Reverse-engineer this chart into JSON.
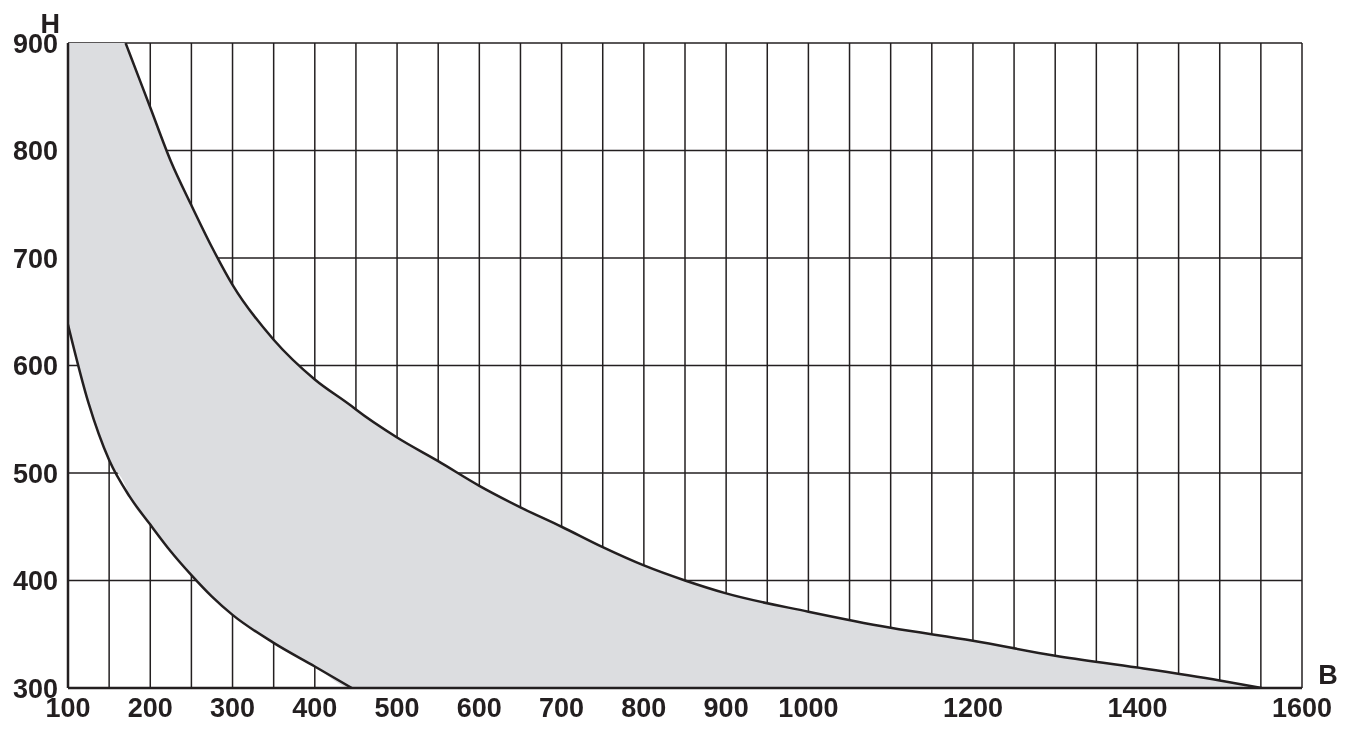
{
  "chart_data": {
    "type": "line",
    "xlabel": "B",
    "ylabel": "H",
    "xlim": [
      100,
      1600
    ],
    "ylim": [
      300,
      900
    ],
    "xticks": [
      100,
      {
        "value": 150,
        "label": null
      },
      200,
      {
        "value": 250,
        "label": null
      },
      300,
      {
        "value": 350,
        "label": null
      },
      400,
      {
        "value": 450,
        "label": null
      },
      500,
      {
        "value": 550,
        "label": null
      },
      600,
      {
        "value": 650,
        "label": null
      },
      700,
      {
        "value": 750,
        "label": null
      },
      800,
      {
        "value": 850,
        "label": null
      },
      900,
      {
        "value": 950,
        "label": null
      },
      1000,
      {
        "value": 1050,
        "label": null
      },
      {
        "value": 1100,
        "label": null
      },
      {
        "value": 1150,
        "label": null
      },
      1200,
      {
        "value": 1250,
        "label": null
      },
      {
        "value": 1300,
        "label": null
      },
      {
        "value": 1350,
        "label": null
      },
      1400,
      {
        "value": 1450,
        "label": null
      },
      {
        "value": 1500,
        "label": null
      },
      {
        "value": 1550,
        "label": null
      },
      1600
    ],
    "yticks": [
      300,
      400,
      500,
      600,
      700,
      800,
      900
    ],
    "grid": true,
    "marker": "none",
    "line_style": "solid",
    "series": [
      {
        "color": "#231f20",
        "x": [
          100,
          125,
          150,
          170,
          175,
          200,
          225,
          250,
          275,
          300,
          350,
          400,
          445,
          450,
          500,
          550,
          600,
          650,
          700,
          750,
          800,
          850,
          900,
          1000,
          1100,
          1200,
          1300,
          1400,
          1500,
          1551
        ],
        "values": [
          null,
          null,
          null,
          900,
          890,
          840,
          790,
          749,
          710,
          675,
          624,
          587,
          562,
          559,
          533,
          511,
          488,
          468,
          450,
          431,
          414,
          400,
          388,
          371,
          356,
          344,
          330,
          319,
          307,
          300
        ],
        "upper": [
          900,
          900,
          900,
          900,
          890,
          840,
          790,
          749,
          710,
          675,
          624,
          587,
          562,
          559,
          533,
          511,
          488,
          468,
          450,
          431,
          414,
          400,
          388,
          371,
          356,
          344,
          330,
          319,
          307,
          300
        ],
        "lower": [
          638,
          565,
          512,
          488,
          478,
          452,
          427,
          405,
          385,
          368,
          342,
          320,
          300,
          300,
          300,
          300,
          300,
          300,
          300,
          300,
          300,
          300,
          300,
          300,
          300,
          300,
          300,
          300,
          300,
          300
        ]
      },
      {
        "color": "#231f20",
        "x": [
          100,
          125,
          150,
          175,
          200,
          225,
          250,
          275,
          300,
          350,
          400,
          445
        ],
        "values": [
          638,
          565,
          512,
          478,
          452,
          427,
          405,
          385,
          368,
          342,
          320,
          300
        ]
      }
    ]
  }
}
